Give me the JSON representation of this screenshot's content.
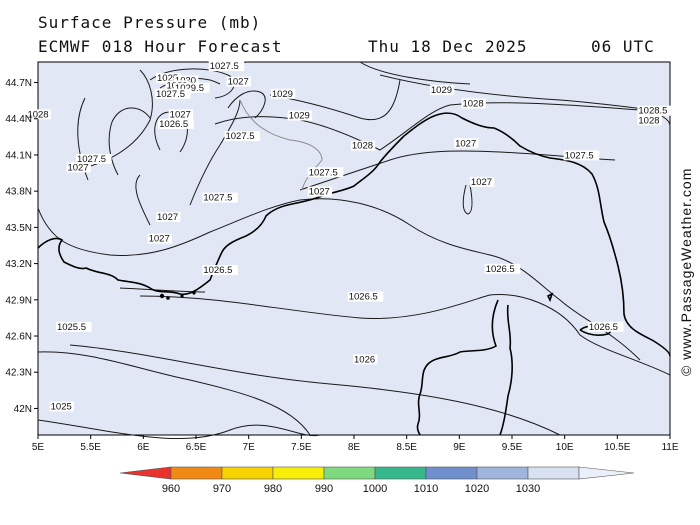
{
  "header": {
    "title": "Surface Pressure (mb)",
    "model": "ECMWF 018 Hour Forecast",
    "date": "Thu 18 Dec 2025",
    "time": "06 UTC"
  },
  "credit": "© www.PassageWeather.com",
  "axes": {
    "lon_labels": [
      "5E",
      "5.5E",
      "6E",
      "6.5E",
      "7E",
      "7.5E",
      "8E",
      "8.5E",
      "9E",
      "9.5E",
      "10E",
      "10.5E",
      "11E"
    ],
    "lat_labels": [
      "44.7N",
      "44.4N",
      "44.1N",
      "43.8N",
      "43.5N",
      "43.2N",
      "42.9N",
      "42.6N",
      "42.3N",
      "42N"
    ]
  },
  "isobar_labels": [
    {
      "text": "1027.5",
      "lon": 6.63,
      "lat": 44.82
    },
    {
      "text": "1027",
      "lon": 6.8,
      "lat": 44.69
    },
    {
      "text": "1025",
      "lon": 6.13,
      "lat": 44.72
    },
    {
      "text": "1030",
      "lon": 6.3,
      "lat": 44.7
    },
    {
      "text": "1029",
      "lon": 6.22,
      "lat": 44.66
    },
    {
      "text": "1029.5",
      "lon": 6.3,
      "lat": 44.64
    },
    {
      "text": "1027.5",
      "lon": 6.12,
      "lat": 44.59
    },
    {
      "text": "1029",
      "lon": 7.22,
      "lat": 44.59
    },
    {
      "text": "1029",
      "lon": 8.73,
      "lat": 44.62
    },
    {
      "text": "1028",
      "lon": 4.9,
      "lat": 44.42
    },
    {
      "text": "1027",
      "lon": 6.25,
      "lat": 44.42
    },
    {
      "text": "1026.5",
      "lon": 6.15,
      "lat": 44.34
    },
    {
      "text": "1029",
      "lon": 7.38,
      "lat": 44.41
    },
    {
      "text": "1028",
      "lon": 9.03,
      "lat": 44.51
    },
    {
      "text": "1028.5",
      "lon": 10.7,
      "lat": 44.45
    },
    {
      "text": "1028",
      "lon": 10.7,
      "lat": 44.37
    },
    {
      "text": "1027.5",
      "lon": 6.78,
      "lat": 44.24
    },
    {
      "text": "1028",
      "lon": 7.98,
      "lat": 44.16
    },
    {
      "text": "1027",
      "lon": 8.96,
      "lat": 44.18
    },
    {
      "text": "1027.5",
      "lon": 5.37,
      "lat": 44.05
    },
    {
      "text": "1027",
      "lon": 5.28,
      "lat": 43.98
    },
    {
      "text": "1027.5",
      "lon": 10.0,
      "lat": 44.08
    },
    {
      "text": "1027.5",
      "lon": 7.57,
      "lat": 43.94
    },
    {
      "text": "1027",
      "lon": 9.11,
      "lat": 43.86
    },
    {
      "text": "1027",
      "lon": 7.57,
      "lat": 43.78
    },
    {
      "text": "1027.5",
      "lon": 6.57,
      "lat": 43.73
    },
    {
      "text": "1027",
      "lon": 6.13,
      "lat": 43.57
    },
    {
      "text": "1027",
      "lon": 6.05,
      "lat": 43.39
    },
    {
      "text": "1026.5",
      "lon": 6.57,
      "lat": 43.13
    },
    {
      "text": "1026.5",
      "lon": 9.25,
      "lat": 43.14
    },
    {
      "text": "1026.5",
      "lon": 7.95,
      "lat": 42.91
    },
    {
      "text": "1025.5",
      "lon": 5.18,
      "lat": 42.66
    },
    {
      "text": "1026.5",
      "lon": 10.23,
      "lat": 42.66
    },
    {
      "text": "1026",
      "lon": 8.0,
      "lat": 42.39
    },
    {
      "text": "1025",
      "lon": 5.12,
      "lat": 42.0
    }
  ],
  "legend": {
    "labels": [
      "960",
      "970",
      "980",
      "990",
      "1000",
      "1010",
      "1020",
      "1030"
    ],
    "colors": [
      "#e8342c",
      "#f08a15",
      "#f7d400",
      "#f7ee0a",
      "#7fd97f",
      "#36b88c",
      "#6f8fcf",
      "#9fb5dc",
      "#d7e1f2",
      "#ebeffa"
    ]
  },
  "colors": {
    "map_fill": "#e1e7f5",
    "isobar": "#1a1a1a",
    "coast": "#000000",
    "river": "#8a8a8a"
  }
}
